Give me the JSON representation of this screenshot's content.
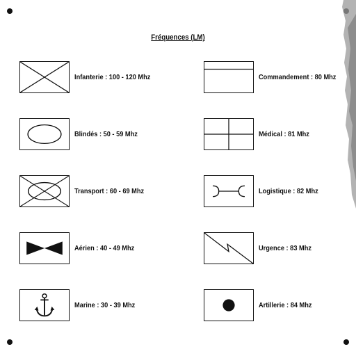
{
  "title": "Fréquences (LM)",
  "colors": {
    "ink": "#111111",
    "background": "#ffffff",
    "torn_edge": "#9a9a9a"
  },
  "left_column": [
    {
      "icon": "infantry-cross-icon",
      "label": "Infanterie : 100 - 120 Mhz"
    },
    {
      "icon": "armor-oval-icon",
      "label": "Blindés : 50 - 59 Mhz"
    },
    {
      "icon": "transport-oval-cross-icon",
      "label": "Transport : 60 - 69 Mhz"
    },
    {
      "icon": "aviation-bowtie-icon",
      "label": "Aérien : 40 - 49 Mhz"
    },
    {
      "icon": "anchor-icon",
      "label": "Marine : 30 - 39 Mhz"
    }
  ],
  "right_column": [
    {
      "icon": "command-band-icon",
      "label": "Commandement : 80 Mhz"
    },
    {
      "icon": "medical-cross-icon",
      "label": "Médical : 81 Mhz"
    },
    {
      "icon": "logistics-bracket-icon",
      "label": "Logistique : 82 Mhz"
    },
    {
      "icon": "emergency-lightning-icon",
      "label": "Urgence : 83 Mhz"
    },
    {
      "icon": "artillery-dot-icon",
      "label": "Artillerie : 84 Mhz"
    }
  ]
}
